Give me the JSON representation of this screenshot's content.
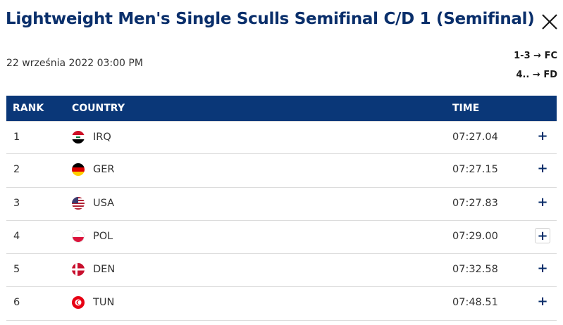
{
  "header": {
    "title": "Lightweight Men's Single Sculls Semifinal C/D 1 (Semifinal)",
    "close_icon": "close-icon"
  },
  "race": {
    "datetime": "22 września 2022 03:00 PM",
    "progression": [
      "1-3 → FC",
      "4.. → FD"
    ]
  },
  "table": {
    "columns": {
      "rank": "RANK",
      "country": "COUNTRY",
      "time": "TIME"
    },
    "rows": [
      {
        "rank": "1",
        "flag": "iraq-flag",
        "country": "IRQ",
        "time": "07:27.04",
        "expand": "+"
      },
      {
        "rank": "2",
        "flag": "germany-flag",
        "country": "GER",
        "time": "07:27.15",
        "expand": "+"
      },
      {
        "rank": "3",
        "flag": "usa-flag",
        "country": "USA",
        "time": "07:27.83",
        "expand": "+"
      },
      {
        "rank": "4",
        "flag": "poland-flag",
        "country": "POL",
        "time": "07:29.00",
        "expand": "+"
      },
      {
        "rank": "5",
        "flag": "denmark-flag",
        "country": "DEN",
        "time": "07:32.58",
        "expand": "+"
      },
      {
        "rank": "6",
        "flag": "tunisia-flag",
        "country": "TUN",
        "time": "07:48.51",
        "expand": "+"
      }
    ]
  },
  "colors": {
    "brand_navy": "#0a3778",
    "title_navy": "#0a2f6b",
    "row_divider": "#dcdcdc"
  }
}
